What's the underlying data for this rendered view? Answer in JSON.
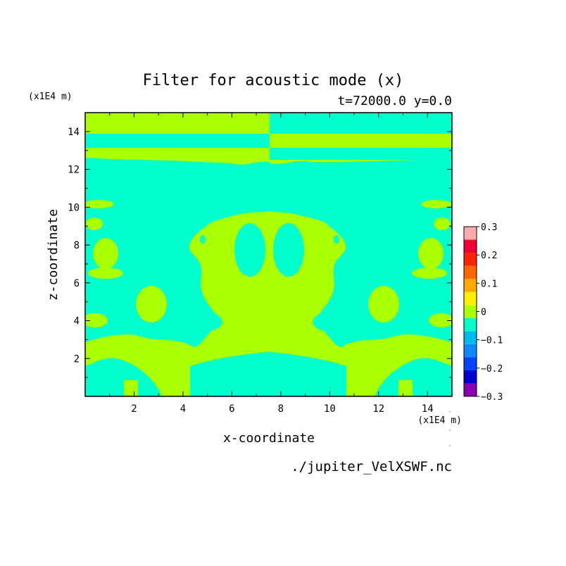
{
  "chart_data": {
    "type": "heatmap",
    "title": "Filter for acoustic mode (x)",
    "subtitle": "t=72000.0 y=0.0",
    "xlabel": "x-coordinate",
    "ylabel": "z-coordinate",
    "x_unit": "(x1E4 m)",
    "y_unit": "(x1E4 m)",
    "xlim": [
      0,
      15
    ],
    "ylim": [
      0,
      15
    ],
    "x_ticks": [
      "2",
      "4",
      "6",
      "8",
      "10",
      "12",
      "14"
    ],
    "y_ticks": [
      "2",
      "4",
      "6",
      "8",
      "10",
      "12",
      "14"
    ],
    "colorbar": {
      "levels": [
        -0.3,
        -0.25,
        -0.2,
        -0.15,
        -0.1,
        -0.05,
        0,
        0.05,
        0.1,
        0.15,
        0.2,
        0.25,
        0.3
      ],
      "tick_labels": [
        "0.3",
        "0.2",
        "0.1",
        "0",
        "−0.1",
        "−0.2",
        "−0.3"
      ],
      "colors": [
        "#8800aa",
        "#0000cc",
        "#0044ff",
        "#1188ff",
        "#00bbee",
        "#00ffcc",
        "#aaff00",
        "#ffee00",
        "#ffaa00",
        "#ff6600",
        "#ff2200",
        "#ee0033",
        "#ffaaaa"
      ]
    },
    "field_colors": {
      "zero_band": "#aaff00",
      "negative_band": "#00ffcc"
    }
  },
  "source_file": "./jupiter_VelXSWF.nc"
}
